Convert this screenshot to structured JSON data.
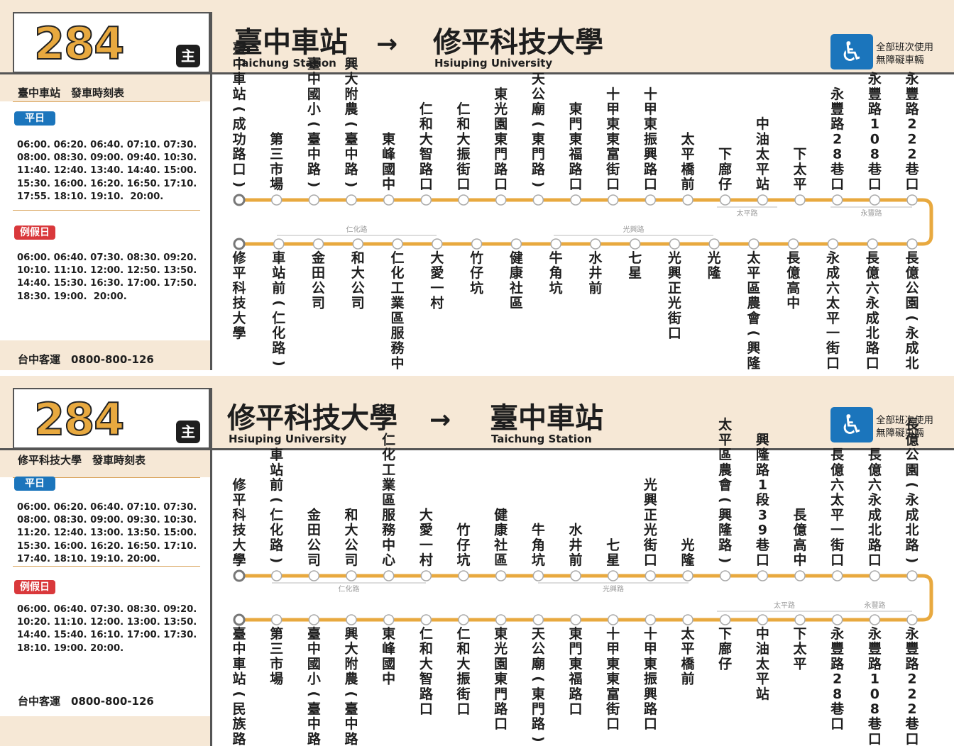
{
  "colors": {
    "route_line": "#e8a93f",
    "header_bg": "#f6e8d6",
    "weekday_pill": "#1b75bc",
    "holiday_pill": "#d9383b",
    "accessible": "#1b75bc"
  },
  "panels": [
    {
      "route_number": "284",
      "main_tag": "主",
      "from_zh": "臺中車站",
      "from_en": "Taichung Station",
      "arrow": "→",
      "to_zh": "修平科技大學",
      "to_en": "Hsiuping University",
      "accessible_icon": "wheelchair-icon",
      "accessible_text": "全部班次使用\n無障礙車輛",
      "timetable_title": "臺中車站　發車時刻表",
      "weekday_label": "平日",
      "weekday_times": "06:00. 06:20. 06:40. 07:10. 07:30.\n08:00. 08:30. 09:00. 09:40. 10:30.\n11:40. 12:40. 13:40. 14:40. 15:00.\n15:30. 16:00. 16:20. 16:50. 17:10.\n17:55. 18:10. 19:10.  20:00.",
      "holiday_label": "例假日",
      "holiday_times": "06:00. 06:40. 07:30. 08:30. 09:20.\n10:10. 11:10. 12:00. 12:50. 13:50.\n14:40. 15:30. 16:30. 17:00. 17:50.\n18:30. 19:00.  20:00.",
      "operator": "台中客運　0800-800-126",
      "top_stops": [
        "臺中車站(成功路口)",
        "第三市場",
        "臺中國小(臺中路)",
        "興大附農(臺中路)",
        "東峰國中",
        "仁和大智路口",
        "仁和大振街口",
        "東光園東門路口",
        "天公廟(東門路)",
        "東門東福路口",
        "十甲東東富街口",
        "十甲東振興路口",
        "太平橋前",
        "下廍仔",
        "中油太平站",
        "下太平",
        "永豐路28巷口",
        "永豐路108巷口",
        "永豐路222巷口"
      ],
      "bottom_stops": [
        "修平科技大學",
        "車站前(仁化路)",
        "金田公司",
        "和大公司",
        "仁化工業區服務中心",
        "大愛一村",
        "竹仔坑",
        "健康社區",
        "牛角坑",
        "水井前",
        "七星",
        "光興正光街口",
        "光隆",
        "太平區農會(興隆路)",
        "長億高中",
        "永成六太平一街口",
        "長億六永成北路口",
        "長億公園(永成北路)"
      ],
      "top_roads": [
        "太平路",
        "永豐路"
      ],
      "bottom_roads": [
        "仁化路",
        "光興路"
      ]
    },
    {
      "route_number": "284",
      "main_tag": "主",
      "from_zh": "修平科技大學",
      "from_en": "Hsiuping University",
      "arrow": "→",
      "to_zh": "臺中車站",
      "to_en": "Taichung Station",
      "accessible_icon": "wheelchair-icon",
      "accessible_text": "全部班次使用\n無障礙車輛",
      "timetable_title": "修平科技大學　發車時刻表",
      "weekday_label": "平日",
      "weekday_times": "06:00. 06:20. 06:40. 07:10. 07:30.\n08:00. 08:30. 09:00. 09:30. 10:30.\n11:20. 12:40. 13:00. 13:50. 15:00.\n15:30. 16:00. 16:20. 16:50. 17:10.\n17:40. 18:10. 19:10. 20:00.",
      "holiday_label": "例假日",
      "holiday_times": "06:00. 06:40. 07:30. 08:30. 09:20.\n10:20. 11:10. 12:00. 13:00. 13:50.\n14:40. 15:40. 16:10. 17:00. 17:30.\n18:10. 19:00. 20:00.",
      "operator": "台中客運　0800-800-126",
      "top_stops": [
        "修平科技大學",
        "車站前(仁化路)",
        "金田公司",
        "和大公司",
        "仁化工業區服務中心",
        "大愛一村",
        "竹仔坑",
        "健康社區",
        "牛角坑",
        "水井前",
        "七星",
        "光興正光街口",
        "光隆",
        "太平區農會(興隆路)",
        "興隆路1段39巷口",
        "長億高中",
        "長億六太平一街口",
        "長億六永成北路口",
        "長億公園(永成北路)"
      ],
      "bottom_stops": [
        "臺中車站(民族路口)",
        "第三市場",
        "臺中國小(臺中路)",
        "興大附農(臺中路)",
        "東峰國中",
        "仁和大智路口",
        "仁和大振街口",
        "東光園東門路口",
        "天公廟(東門路)",
        "東門東福路口",
        "十甲東東富街口",
        "十甲東振興路口",
        "太平橋前",
        "下廍仔",
        "中油太平站",
        "下太平",
        "永豐路28巷口",
        "永豐路108巷口",
        "永豐路222巷口"
      ],
      "top_roads": [
        "仁化路",
        "光興路"
      ],
      "bottom_roads": [
        "太平路",
        "永豐路"
      ]
    }
  ]
}
